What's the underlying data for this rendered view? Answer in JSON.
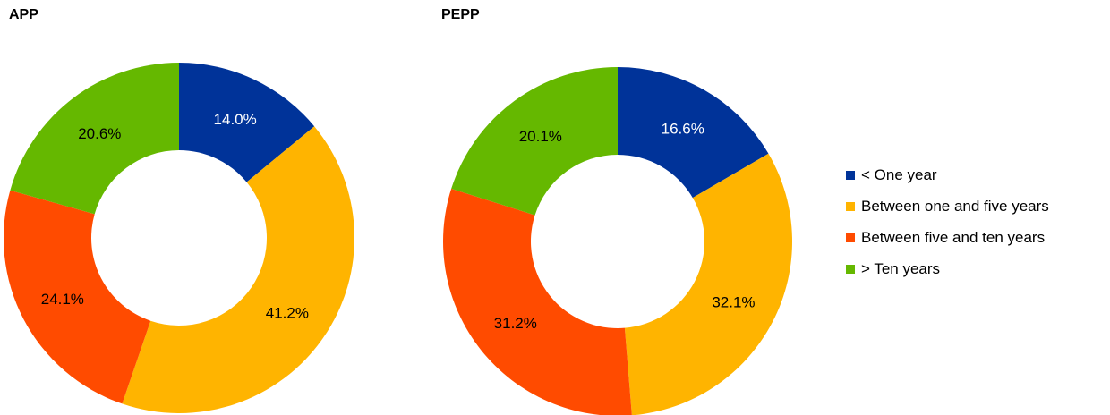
{
  "chart_data": [
    {
      "type": "pie",
      "title": "APP",
      "donut": true,
      "categories": [
        "< One year",
        "Between one and five years",
        "Between five and ten years",
        "> Ten years"
      ],
      "values": [
        14.0,
        41.2,
        24.1,
        20.6
      ],
      "labels": [
        "14.0%",
        "41.2%",
        "24.1%",
        "20.6%"
      ],
      "colors": [
        "#003399",
        "#FFB400",
        "#FF4B00",
        "#65B800"
      ],
      "label_colors": [
        "#ffffff",
        "#000000",
        "#000000",
        "#000000"
      ]
    },
    {
      "type": "pie",
      "title": "PEPP",
      "donut": true,
      "categories": [
        "< One year",
        "Between one and five years",
        "Between five and ten years",
        "> Ten years"
      ],
      "values": [
        16.6,
        32.1,
        31.2,
        20.1
      ],
      "labels": [
        "16.6%",
        "32.1%",
        "31.2%",
        "20.1%"
      ],
      "colors": [
        "#003399",
        "#FFB400",
        "#FF4B00",
        "#65B800"
      ],
      "label_colors": [
        "#ffffff",
        "#000000",
        "#000000",
        "#000000"
      ]
    }
  ],
  "legend": {
    "placement": "right",
    "items": [
      {
        "label": "< One year",
        "color": "#003399"
      },
      {
        "label": "Between one and five years",
        "color": "#FFB400"
      },
      {
        "label": "Between five and ten years",
        "color": "#FF4B00"
      },
      {
        "label": "> Ten years",
        "color": "#65B800"
      }
    ]
  }
}
